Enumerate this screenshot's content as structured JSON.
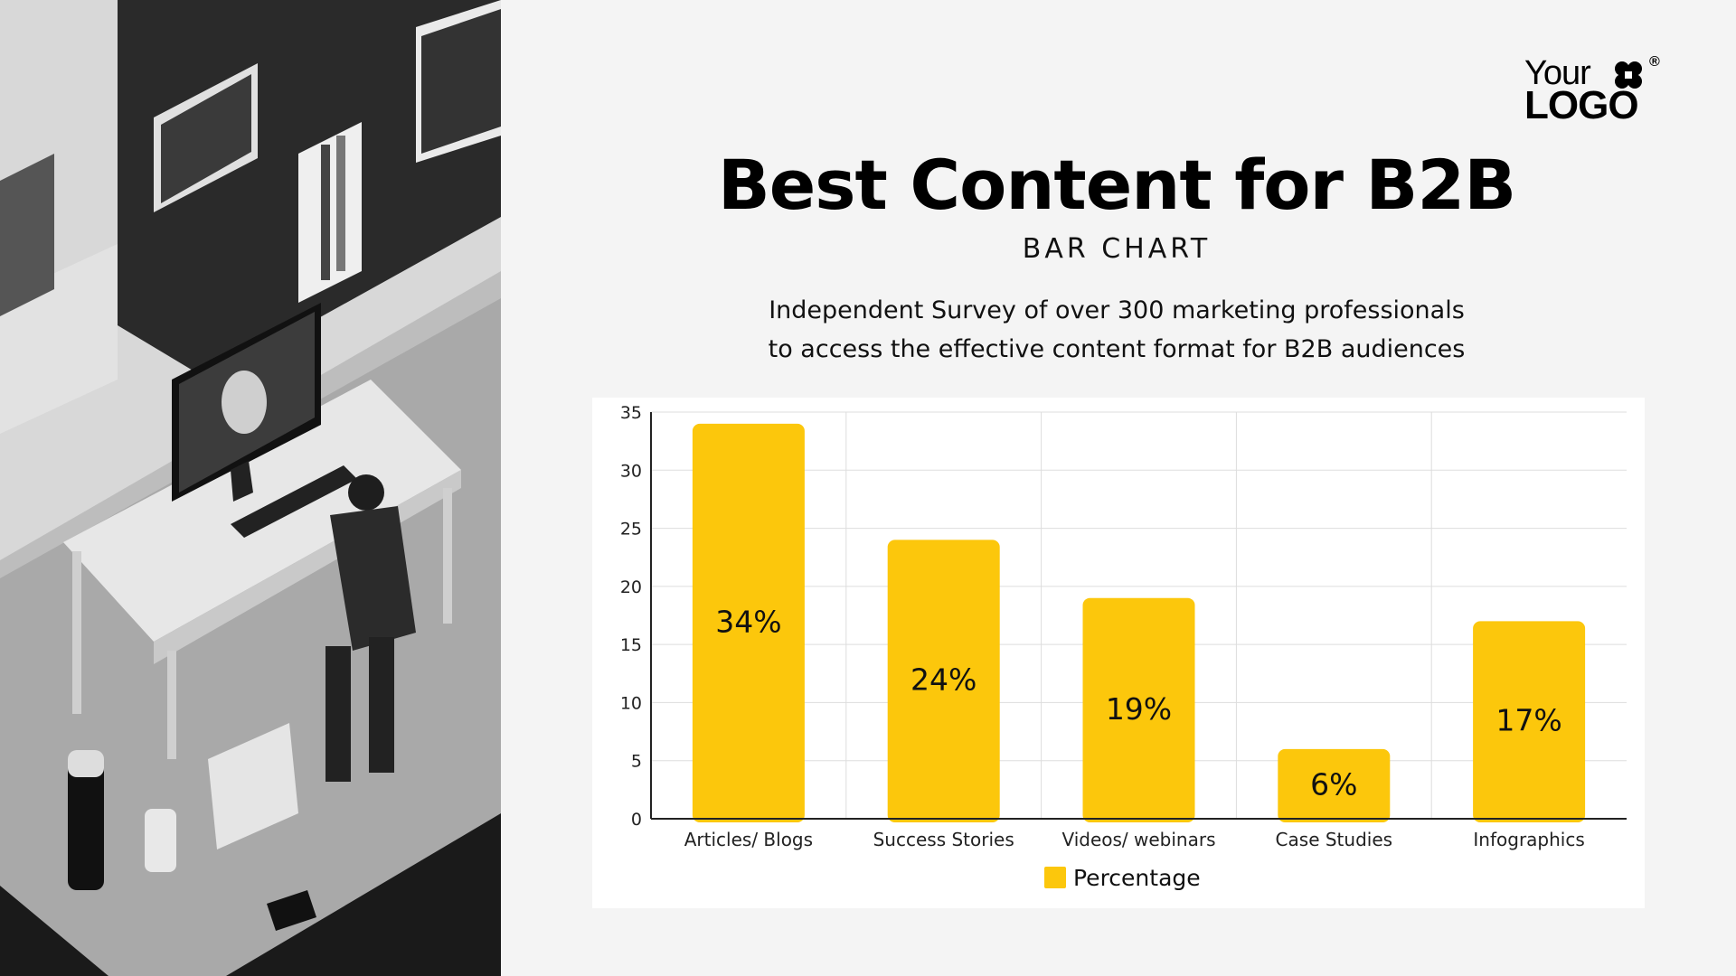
{
  "logo": {
    "line1": "Your",
    "line2": "LOGO",
    "mark": "®"
  },
  "header": {
    "title": "Best Content for B2B",
    "subtitle": "BAR CHART",
    "description_lines": [
      "Independent Survey of over 300 marketing professionals",
      "to access the effective content format for B2B audiences"
    ]
  },
  "colors": {
    "bar": "#fcc70c",
    "background": "#f4f4f4",
    "grid": "#dddddd"
  },
  "chart_data": {
    "type": "bar",
    "categories": [
      "Articles/ Blogs",
      "Success Stories",
      "Videos/ webinars",
      "Case Studies",
      "Infographics"
    ],
    "series": [
      {
        "name": "Percentage",
        "values": [
          34,
          24,
          19,
          6,
          17
        ]
      }
    ],
    "data_labels": [
      "34%",
      "24%",
      "19%",
      "6%",
      "17%"
    ],
    "yticks": [
      0,
      5,
      10,
      15,
      20,
      25,
      30,
      35
    ],
    "ylim": [
      0,
      35
    ],
    "grid": true,
    "legend_position": "bottom-center"
  }
}
